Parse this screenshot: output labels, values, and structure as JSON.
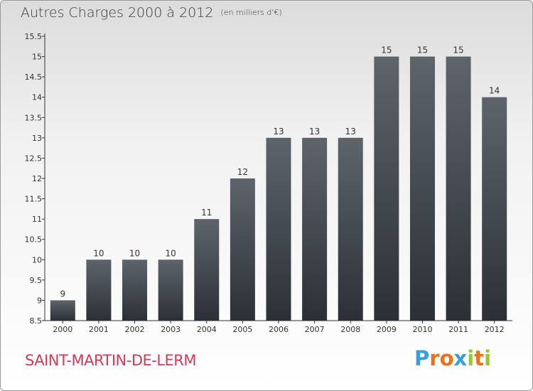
{
  "header": {
    "title": "Autres Charges 2000 à 2012",
    "subtitle": "(en milliers d'€)"
  },
  "footer": {
    "town": "SAINT-MARTIN-DE-LERM",
    "logo_text": "Proxiti",
    "logo_colors": [
      "#3aa0d8",
      "#e8731c",
      "#e8731c",
      "#3aa0d8",
      "#9bc43b",
      "#e8731c",
      "#9bc43b"
    ]
  },
  "chart_data": {
    "type": "bar",
    "title": "Autres Charges 2000 à 2012",
    "subtitle": "(en milliers d'€)",
    "categories": [
      "2000",
      "2001",
      "2002",
      "2003",
      "2004",
      "2005",
      "2006",
      "2007",
      "2008",
      "2009",
      "2010",
      "2011",
      "2012"
    ],
    "values": [
      9,
      10,
      10,
      10,
      11,
      12,
      13,
      13,
      13,
      15,
      15,
      15,
      14
    ],
    "data_labels": [
      "9",
      "10",
      "10",
      "10",
      "11",
      "12",
      "13",
      "13",
      "13",
      "15",
      "15",
      "15",
      "14"
    ],
    "ylim": [
      8.5,
      15.5
    ],
    "yticks": [
      8.5,
      9,
      9.5,
      10,
      10.5,
      11,
      11.5,
      12,
      12.5,
      13,
      13.5,
      14,
      14.5,
      15,
      15.5
    ],
    "ytick_labels": [
      "8.5",
      "9",
      "9.5",
      "10",
      "10.5",
      "11",
      "11.5",
      "12",
      "12.5",
      "13",
      "13.5",
      "14",
      "14.5",
      "15",
      "15.5"
    ],
    "grid": false,
    "bar_color": "#4a5057"
  }
}
